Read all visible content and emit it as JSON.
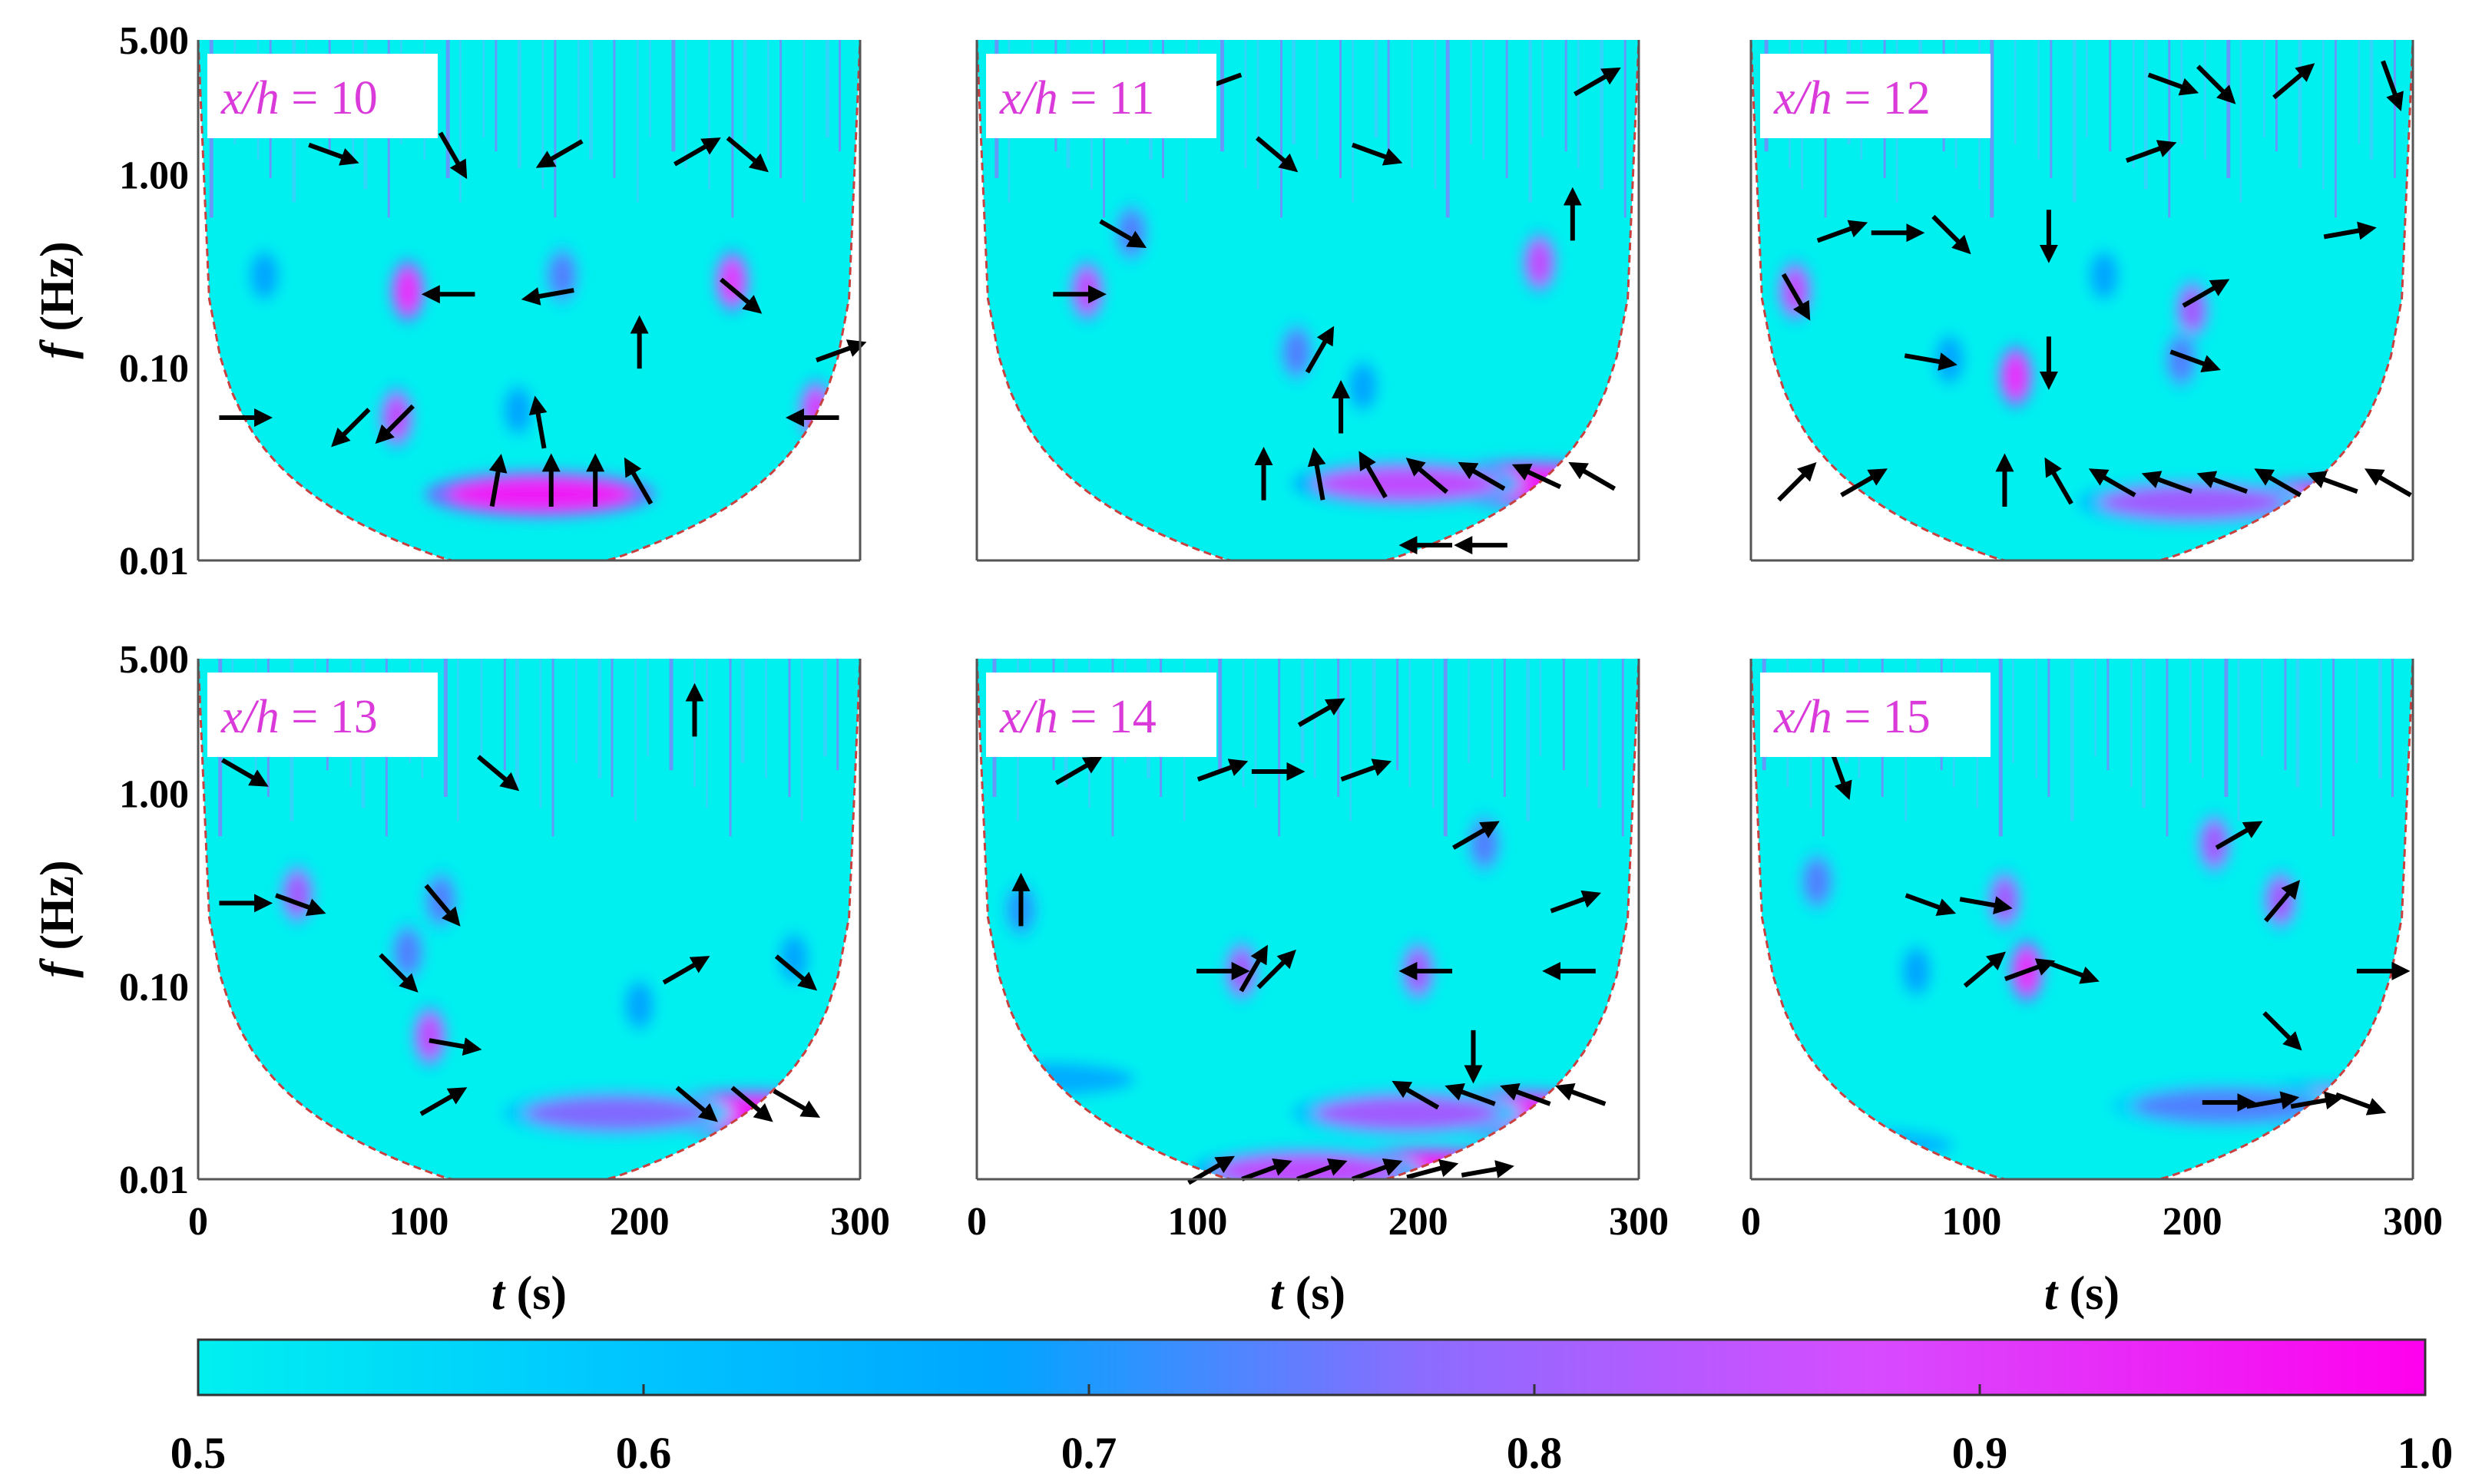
{
  "chart_data": {
    "type": "heatmap",
    "description_kind": "wavelet coherence",
    "x": {
      "label_italic": "t",
      "label_unit": "(s)",
      "range": [
        0,
        300
      ],
      "ticks": [
        "0",
        "100",
        "200",
        "300"
      ]
    },
    "y": {
      "label_italic": "f",
      "label_unit": "(Hz)",
      "scale": "log",
      "range": [
        0.01,
        5.0
      ],
      "ticks": [
        "0.01",
        "0.10",
        "1.00",
        "5.00"
      ]
    },
    "colorbar": {
      "range": [
        0.5,
        1.0
      ],
      "ticks": [
        "0.5",
        "0.6",
        "0.7",
        "0.8",
        "0.9",
        "1.0"
      ],
      "colors": [
        "#00f0f0",
        "#00aaff",
        "#a55aff",
        "#ff00ff"
      ]
    },
    "panels": [
      {
        "label_var": "x/h",
        "label_eq": " = 10",
        "blobs": [
          [
            155,
            0.022,
            0.95
          ],
          [
            90,
            0.055,
            0.85
          ],
          [
            95,
            0.25,
            0.92
          ],
          [
            242,
            0.28,
            0.9
          ],
          [
            280,
            0.06,
            0.88
          ],
          [
            145,
            0.06,
            0.7
          ],
          [
            165,
            0.3,
            0.75
          ],
          [
            30,
            0.3,
            0.7
          ]
        ],
        "arrows": [
          [
            20,
            0.055,
            0
          ],
          [
            70,
            0.05,
            225
          ],
          [
            90,
            0.052,
            225
          ],
          [
            135,
            0.025,
            80
          ],
          [
            160,
            0.025,
            90
          ],
          [
            180,
            0.025,
            90
          ],
          [
            200,
            0.025,
            120
          ],
          [
            155,
            0.05,
            100
          ],
          [
            115,
            0.24,
            180
          ],
          [
            160,
            0.24,
            190
          ],
          [
            200,
            0.13,
            90
          ],
          [
            245,
            0.24,
            -40
          ],
          [
            280,
            0.055,
            180
          ],
          [
            290,
            0.12,
            20
          ],
          [
            60,
            1.3,
            -20
          ],
          [
            115,
            1.3,
            -60
          ],
          [
            165,
            1.3,
            210
          ],
          [
            225,
            1.3,
            30
          ],
          [
            248,
            1.3,
            -40
          ]
        ]
      },
      {
        "label_var": "x/h",
        "label_eq": " = 11",
        "blobs": [
          [
            250,
            0.025,
            0.95
          ],
          [
            195,
            0.025,
            0.85
          ],
          [
            50,
            0.25,
            0.85
          ],
          [
            255,
            0.35,
            0.85
          ],
          [
            145,
            0.12,
            0.75
          ],
          [
            175,
            0.08,
            0.7
          ],
          [
            70,
            0.5,
            0.75
          ]
        ],
        "arrows": [
          [
            130,
            0.027,
            90
          ],
          [
            155,
            0.027,
            100
          ],
          [
            180,
            0.027,
            120
          ],
          [
            205,
            0.027,
            140
          ],
          [
            230,
            0.027,
            150
          ],
          [
            255,
            0.027,
            155
          ],
          [
            280,
            0.027,
            150
          ],
          [
            205,
            0.012,
            180
          ],
          [
            230,
            0.012,
            180
          ],
          [
            165,
            0.06,
            90
          ],
          [
            155,
            0.12,
            60
          ],
          [
            45,
            0.24,
            0
          ],
          [
            65,
            0.5,
            -30
          ],
          [
            135,
            1.3,
            -40
          ],
          [
            180,
            1.3,
            -20
          ],
          [
            270,
            0.6,
            90
          ],
          [
            280,
            3.0,
            30
          ],
          [
            110,
            3.0,
            200
          ]
        ]
      },
      {
        "label_var": "x/h",
        "label_eq": " = 12",
        "blobs": [
          [
            260,
            0.02,
            0.95
          ],
          [
            200,
            0.02,
            0.8
          ],
          [
            120,
            0.09,
            0.92
          ],
          [
            20,
            0.25,
            0.85
          ],
          [
            200,
            0.2,
            0.8
          ],
          [
            195,
            0.11,
            0.75
          ],
          [
            160,
            0.3,
            0.7
          ],
          [
            90,
            0.11,
            0.7
          ]
        ],
        "arrows": [
          [
            20,
            0.025,
            45
          ],
          [
            50,
            0.025,
            30
          ],
          [
            115,
            0.025,
            90
          ],
          [
            140,
            0.025,
            120
          ],
          [
            165,
            0.025,
            150
          ],
          [
            190,
            0.025,
            160
          ],
          [
            215,
            0.025,
            160
          ],
          [
            240,
            0.025,
            150
          ],
          [
            265,
            0.025,
            160
          ],
          [
            290,
            0.025,
            150
          ],
          [
            80,
            0.11,
            -10
          ],
          [
            135,
            0.11,
            -90
          ],
          [
            200,
            0.11,
            -20
          ],
          [
            205,
            0.24,
            30
          ],
          [
            20,
            0.24,
            -60
          ],
          [
            40,
            0.5,
            20
          ],
          [
            65,
            0.5,
            0
          ],
          [
            90,
            0.5,
            -45
          ],
          [
            135,
            0.5,
            -90
          ],
          [
            270,
            0.5,
            10
          ],
          [
            180,
            1.3,
            20
          ],
          [
            190,
            3.0,
            -20
          ],
          [
            210,
            3.0,
            -45
          ],
          [
            245,
            3.0,
            40
          ],
          [
            290,
            3.0,
            -70
          ]
        ]
      },
      {
        "label_var": "x/h",
        "label_eq": " = 13",
        "blobs": [
          [
            250,
            0.022,
            0.95
          ],
          [
            190,
            0.022,
            0.78
          ],
          [
            105,
            0.055,
            0.85
          ],
          [
            45,
            0.3,
            0.8
          ],
          [
            110,
            0.28,
            0.75
          ],
          [
            95,
            0.15,
            0.75
          ],
          [
            200,
            0.08,
            0.7
          ],
          [
            270,
            0.14,
            0.7
          ]
        ],
        "arrows": [
          [
            110,
            0.025,
            30
          ],
          [
            225,
            0.025,
            -40
          ],
          [
            250,
            0.025,
            -40
          ],
          [
            270,
            0.025,
            -30
          ],
          [
            115,
            0.05,
            -10
          ],
          [
            90,
            0.12,
            -45
          ],
          [
            110,
            0.27,
            -50
          ],
          [
            220,
            0.12,
            30
          ],
          [
            270,
            0.12,
            -40
          ],
          [
            20,
            0.27,
            0
          ],
          [
            45,
            0.27,
            -20
          ],
          [
            20,
            1.3,
            -30
          ],
          [
            135,
            1.3,
            -40
          ],
          [
            225,
            2.6,
            90
          ]
        ]
      },
      {
        "label_var": "x/h",
        "label_eq": " = 14",
        "blobs": [
          [
            205,
            0.011,
            0.98
          ],
          [
            150,
            0.011,
            0.85
          ],
          [
            245,
            0.022,
            0.95
          ],
          [
            195,
            0.022,
            0.8
          ],
          [
            120,
            0.12,
            0.8
          ],
          [
            200,
            0.12,
            0.8
          ],
          [
            230,
            0.55,
            0.75
          ],
          [
            20,
            0.25,
            0.72
          ],
          [
            30,
            0.033,
            0.68
          ]
        ],
        "arrows": [
          [
            105,
            0.011,
            30
          ],
          [
            130,
            0.011,
            20
          ],
          [
            155,
            0.011,
            20
          ],
          [
            180,
            0.011,
            20
          ],
          [
            205,
            0.011,
            15
          ],
          [
            230,
            0.011,
            10
          ],
          [
            200,
            0.027,
            150
          ],
          [
            225,
            0.027,
            160
          ],
          [
            250,
            0.027,
            160
          ],
          [
            275,
            0.027,
            160
          ],
          [
            225,
            0.045,
            -90
          ],
          [
            110,
            0.12,
            0
          ],
          [
            125,
            0.12,
            60
          ],
          [
            135,
            0.12,
            45
          ],
          [
            205,
            0.12,
            180
          ],
          [
            270,
            0.12,
            180
          ],
          [
            20,
            0.27,
            90
          ],
          [
            270,
            0.27,
            20
          ],
          [
            225,
            0.6,
            30
          ],
          [
            45,
            1.3,
            30
          ],
          [
            110,
            1.3,
            20
          ],
          [
            135,
            1.3,
            0
          ],
          [
            175,
            1.3,
            20
          ],
          [
            155,
            2.6,
            30
          ]
        ]
      },
      {
        "label_var": "x/h",
        "label_eq": " = 15",
        "blobs": [
          [
            255,
            0.024,
            0.88
          ],
          [
            215,
            0.024,
            0.75
          ],
          [
            125,
            0.12,
            0.92
          ],
          [
            115,
            0.28,
            0.8
          ],
          [
            240,
            0.28,
            0.8
          ],
          [
            30,
            0.35,
            0.75
          ],
          [
            210,
            0.55,
            0.8
          ],
          [
            75,
            0.12,
            0.7
          ],
          [
            50,
            0.015,
            0.65
          ]
        ],
        "arrows": [
          [
            215,
            0.025,
            0
          ],
          [
            235,
            0.025,
            10
          ],
          [
            255,
            0.025,
            10
          ],
          [
            275,
            0.025,
            -20
          ],
          [
            240,
            0.06,
            -45
          ],
          [
            105,
            0.12,
            40
          ],
          [
            125,
            0.12,
            20
          ],
          [
            145,
            0.12,
            -20
          ],
          [
            285,
            0.12,
            0
          ],
          [
            80,
            0.27,
            -20
          ],
          [
            105,
            0.27,
            -10
          ],
          [
            240,
            0.27,
            50
          ],
          [
            220,
            0.6,
            30
          ],
          [
            40,
            1.3,
            -70
          ]
        ]
      }
    ]
  }
}
